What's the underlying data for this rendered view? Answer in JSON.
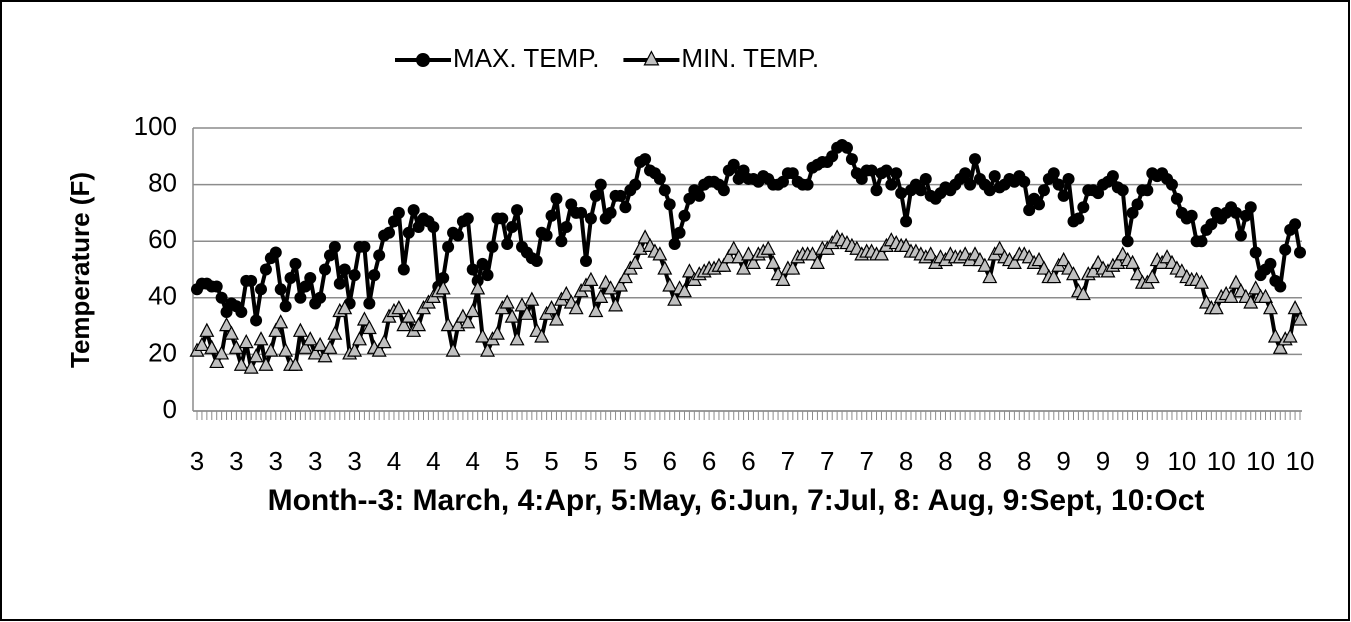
{
  "chart_data": {
    "type": "line",
    "xlabel": "Month--3: March, 4:Apr, 5:May, 6:Jun, 7:Jul, 8: Aug, 9:Sept, 10:Oct",
    "ylabel": "Temperature (F)",
    "categories": [
      "3",
      null,
      null,
      null,
      null,
      null,
      null,
      null,
      "3",
      null,
      null,
      null,
      null,
      null,
      null,
      null,
      "3",
      null,
      null,
      null,
      null,
      null,
      null,
      null,
      "3",
      null,
      null,
      null,
      null,
      null,
      null,
      null,
      "3",
      null,
      null,
      null,
      null,
      null,
      null,
      null,
      "4",
      null,
      null,
      null,
      null,
      null,
      null,
      null,
      "4",
      null,
      null,
      null,
      null,
      null,
      null,
      null,
      "4",
      null,
      null,
      null,
      null,
      null,
      null,
      null,
      "5",
      null,
      null,
      null,
      null,
      null,
      null,
      null,
      "5",
      null,
      null,
      null,
      null,
      null,
      null,
      null,
      "5",
      null,
      null,
      null,
      null,
      null,
      null,
      null,
      "5",
      null,
      null,
      null,
      null,
      null,
      null,
      null,
      "6",
      null,
      null,
      null,
      null,
      null,
      null,
      null,
      "6",
      null,
      null,
      null,
      null,
      null,
      null,
      null,
      "6",
      null,
      null,
      null,
      null,
      null,
      null,
      null,
      "7",
      null,
      null,
      null,
      null,
      null,
      null,
      null,
      "7",
      null,
      null,
      null,
      null,
      null,
      null,
      null,
      "7",
      null,
      null,
      null,
      null,
      null,
      null,
      null,
      "8",
      null,
      null,
      null,
      null,
      null,
      null,
      null,
      "8",
      null,
      null,
      null,
      null,
      null,
      null,
      null,
      "8",
      null,
      null,
      null,
      null,
      null,
      null,
      null,
      "8",
      null,
      null,
      null,
      null,
      null,
      null,
      null,
      "9",
      null,
      null,
      null,
      null,
      null,
      null,
      null,
      "9",
      null,
      null,
      null,
      null,
      null,
      null,
      null,
      "9",
      null,
      null,
      null,
      null,
      null,
      null,
      null,
      "10",
      null,
      null,
      null,
      null,
      null,
      null,
      null,
      "10",
      null,
      null,
      null,
      null,
      null,
      null,
      null,
      "10",
      null,
      null,
      null,
      null,
      null,
      null,
      null,
      "10"
    ],
    "series": [
      {
        "name": "MAX. TEMP.",
        "color": "#000000",
        "marker": "circle",
        "values": [
          43,
          45,
          45,
          44,
          44,
          40,
          35,
          38,
          37,
          35,
          46,
          46,
          32,
          43,
          50,
          54,
          56,
          43,
          37,
          47,
          52,
          40,
          44,
          47,
          38,
          40,
          50,
          55,
          58,
          45,
          50,
          38,
          48,
          58,
          58,
          38,
          48,
          55,
          62,
          63,
          67,
          70,
          50,
          63,
          71,
          65,
          68,
          67,
          65,
          44,
          47,
          58,
          63,
          62,
          67,
          68,
          50,
          46,
          52,
          48,
          58,
          68,
          68,
          59,
          65,
          71,
          58,
          56,
          54,
          53,
          63,
          62,
          69,
          75,
          60,
          65,
          73,
          70,
          70,
          53,
          68,
          76,
          80,
          68,
          70,
          76,
          76,
          72,
          78,
          80,
          88,
          89,
          85,
          84,
          82,
          78,
          73,
          59,
          63,
          69,
          75,
          78,
          76,
          80,
          81,
          81,
          80,
          78,
          85,
          87,
          82,
          85,
          82,
          82,
          81,
          83,
          82,
          80,
          80,
          81,
          84,
          84,
          81,
          80,
          80,
          86,
          87,
          88,
          88,
          90,
          93,
          94,
          93,
          89,
          84,
          82,
          85,
          85,
          78,
          84,
          85,
          80,
          84,
          77,
          67,
          78,
          80,
          78,
          82,
          76,
          75,
          77,
          79,
          78,
          80,
          82,
          84,
          80,
          89,
          82,
          80,
          78,
          83,
          79,
          80,
          82,
          81,
          83,
          81,
          71,
          75,
          73,
          78,
          82,
          84,
          80,
          76,
          82,
          67,
          68,
          72,
          78,
          78,
          77,
          80,
          81,
          83,
          79,
          78,
          60,
          70,
          73,
          78,
          78,
          84,
          83,
          84,
          82,
          80,
          75,
          70,
          68,
          69,
          60,
          60,
          64,
          66,
          70,
          68,
          70,
          72,
          70,
          62,
          69,
          72,
          56,
          48,
          50,
          52,
          46,
          44,
          57,
          64,
          66,
          56
        ]
      },
      {
        "name": "MIN. TEMP.",
        "color": "#000000",
        "marker_fill": "#c0c0c0",
        "marker": "triangle",
        "values": [
          21,
          23,
          28,
          22,
          17,
          20,
          30,
          27,
          22,
          16,
          24,
          15,
          19,
          25,
          16,
          21,
          28,
          31,
          21,
          16,
          16,
          28,
          22,
          25,
          20,
          23,
          19,
          22,
          27,
          35,
          36,
          20,
          21,
          25,
          32,
          29,
          22,
          21,
          24,
          33,
          35,
          36,
          30,
          33,
          28,
          30,
          36,
          38,
          40,
          42,
          43,
          30,
          21,
          30,
          33,
          31,
          35,
          43,
          26,
          21,
          25,
          27,
          36,
          38,
          33,
          25,
          37,
          34,
          39,
          28,
          26,
          34,
          36,
          32,
          39,
          41,
          38,
          36,
          42,
          44,
          46,
          35,
          40,
          45,
          43,
          37,
          44,
          47,
          50,
          52,
          57,
          61,
          58,
          56,
          55,
          50,
          44,
          39,
          43,
          42,
          49,
          46,
          48,
          49,
          50,
          50,
          51,
          51,
          54,
          57,
          54,
          50,
          55,
          52,
          55,
          56,
          57,
          52,
          48,
          46,
          50,
          50,
          54,
          55,
          55,
          55,
          52,
          57,
          57,
          59,
          61,
          60,
          59,
          58,
          57,
          55,
          56,
          56,
          55,
          55,
          58,
          60,
          59,
          58,
          58,
          56,
          56,
          55,
          54,
          55,
          52,
          54,
          53,
          55,
          54,
          54,
          55,
          53,
          55,
          53,
          51,
          47,
          55,
          57,
          54,
          53,
          52,
          55,
          55,
          54,
          52,
          53,
          50,
          47,
          47,
          51,
          53,
          50,
          48,
          42,
          41,
          48,
          49,
          52,
          50,
          49,
          51,
          52,
          55,
          53,
          52,
          48,
          45,
          45,
          47,
          53,
          52,
          54,
          52,
          50,
          49,
          47,
          46,
          46,
          45,
          38,
          36,
          36,
          40,
          41,
          40,
          45,
          42,
          40,
          38,
          43,
          40,
          40,
          36,
          26,
          22,
          25,
          26,
          36,
          32
        ]
      }
    ],
    "ylim": [
      0,
      100
    ],
    "yticks": [
      0,
      20,
      40,
      60,
      80,
      100
    ],
    "grid": true,
    "legend": "top"
  }
}
